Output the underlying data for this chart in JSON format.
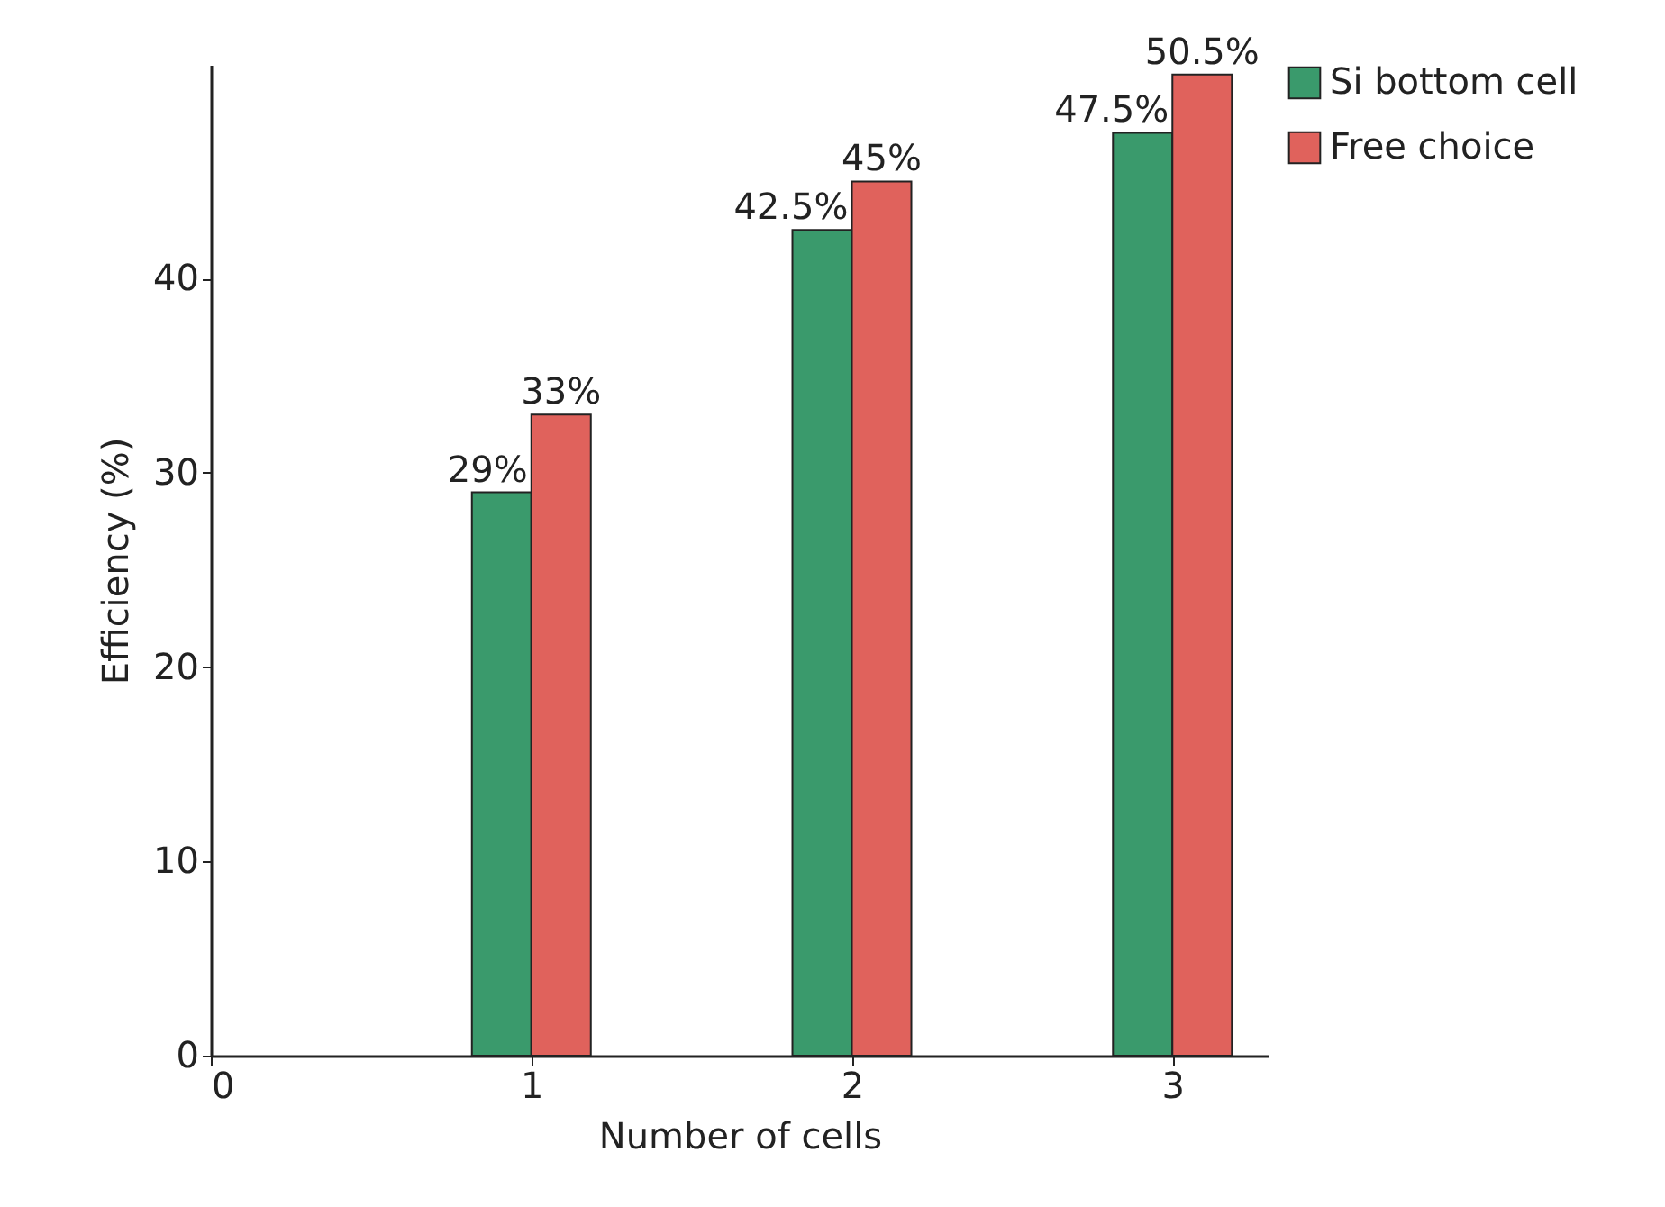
{
  "chart_data": {
    "type": "bar",
    "xlabel": "Number of cells",
    "ylabel": "Efficiency (%)",
    "x": [
      1,
      2,
      3
    ],
    "xlim": [
      0,
      3.3
    ],
    "xticks": [
      0,
      1,
      2,
      3
    ],
    "ylim": [
      0,
      51
    ],
    "yticks": [
      0,
      10,
      20,
      30,
      40
    ],
    "series": [
      {
        "name": "Si bottom cell",
        "color": "#3a9a6c",
        "values": [
          29,
          42.5,
          47.5
        ],
        "value_labels": [
          "29%",
          "42.5%",
          "47.5%"
        ]
      },
      {
        "name": "Free choice",
        "color": "#e0625c",
        "values": [
          33,
          45,
          50.5
        ],
        "value_labels": [
          "33%",
          "45%",
          "50.5%"
        ]
      }
    ],
    "legend": "right",
    "grid": false
  }
}
